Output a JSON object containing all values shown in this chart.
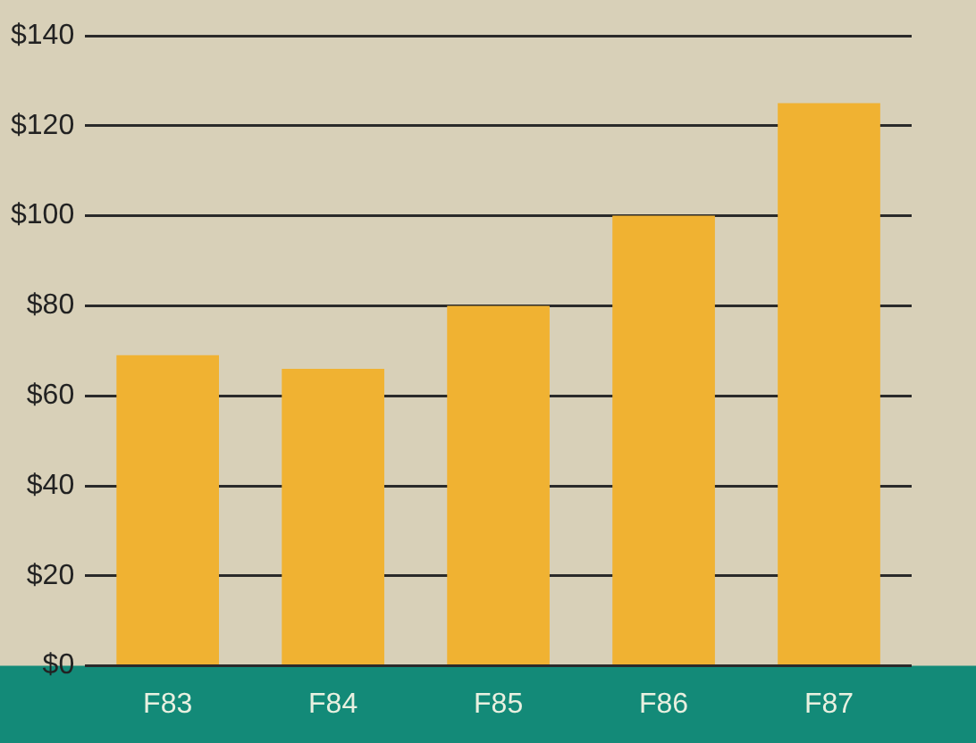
{
  "chart_data": {
    "type": "bar",
    "categories": [
      "F83",
      "F84",
      "F85",
      "F86",
      "F87"
    ],
    "values": [
      69,
      66,
      80,
      100,
      125
    ],
    "color": "#f0b232",
    "ylim": [
      0,
      140
    ],
    "yticks": [
      {
        "value": 0,
        "label": "$0"
      },
      {
        "value": 20,
        "label": "$20"
      },
      {
        "value": 40,
        "label": "$40"
      },
      {
        "value": 60,
        "label": "$60"
      },
      {
        "value": 80,
        "label": "$80"
      },
      {
        "value": 100,
        "label": "$100"
      },
      {
        "value": 120,
        "label": "$120"
      },
      {
        "value": 140,
        "label": "$140"
      }
    ],
    "grid": "y",
    "legend": false
  }
}
